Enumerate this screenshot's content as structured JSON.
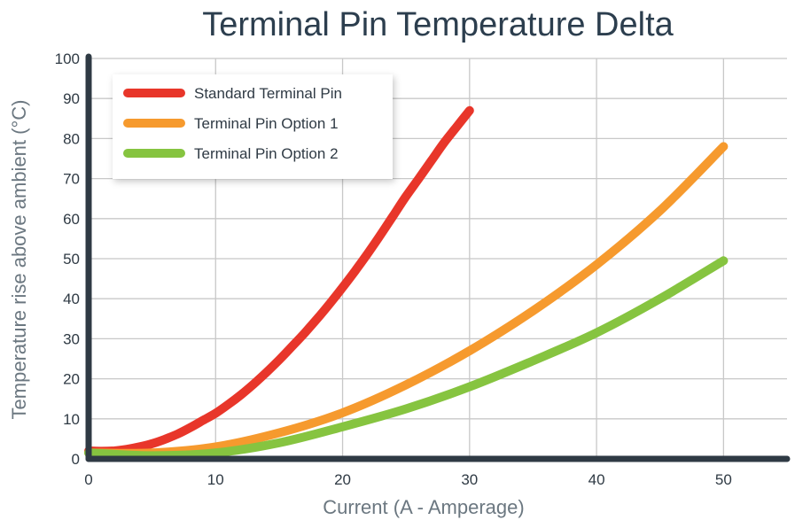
{
  "chart_data": {
    "type": "line",
    "title": "Terminal Pin Temperature Delta",
    "xlabel": "Current (A - Amperage)",
    "ylabel": "Temperature rise above ambient (°C)",
    "xlim": [
      0,
      55
    ],
    "ylim": [
      0,
      100
    ],
    "x_ticks": [
      0,
      10,
      20,
      30,
      40,
      50
    ],
    "y_ticks": [
      0,
      10,
      20,
      30,
      40,
      50,
      60,
      70,
      80,
      90,
      100
    ],
    "grid": true,
    "legend_position": "top-left",
    "series": [
      {
        "name": "Standard Terminal Pin",
        "color": "#e8362a",
        "x": [
          0,
          1,
          2,
          3,
          4,
          5,
          6,
          7,
          8,
          9,
          10,
          11,
          12,
          13,
          14,
          15,
          16,
          17,
          18,
          19,
          20,
          21,
          22,
          23,
          24,
          25,
          26,
          27,
          28,
          29,
          30
        ],
        "y": [
          2,
          1.9,
          2,
          2.4,
          3,
          3.8,
          4.9,
          6.2,
          7.8,
          9.6,
          11.4,
          13.6,
          16,
          18.7,
          21.6,
          24.7,
          28,
          31.4,
          35,
          38.8,
          42.8,
          47,
          51.4,
          56,
          60.8,
          65.6,
          70,
          74.5,
          79,
          83,
          87
        ]
      },
      {
        "name": "Terminal Pin Option 1",
        "color": "#f69a2e",
        "x": [
          0,
          5,
          10,
          15,
          20,
          25,
          30,
          35,
          40,
          45,
          50
        ],
        "y": [
          1.5,
          1.5,
          3,
          6.5,
          11.5,
          18.5,
          27,
          37,
          48.5,
          62,
          78
        ]
      },
      {
        "name": "Terminal Pin Option 2",
        "color": "#86c440",
        "x": [
          0,
          5,
          10,
          15,
          20,
          25,
          30,
          35,
          40,
          45,
          50
        ],
        "y": [
          1.5,
          0.8,
          1.5,
          4,
          8,
          12.5,
          18,
          24.5,
          31.5,
          40,
          49.5
        ]
      }
    ]
  }
}
